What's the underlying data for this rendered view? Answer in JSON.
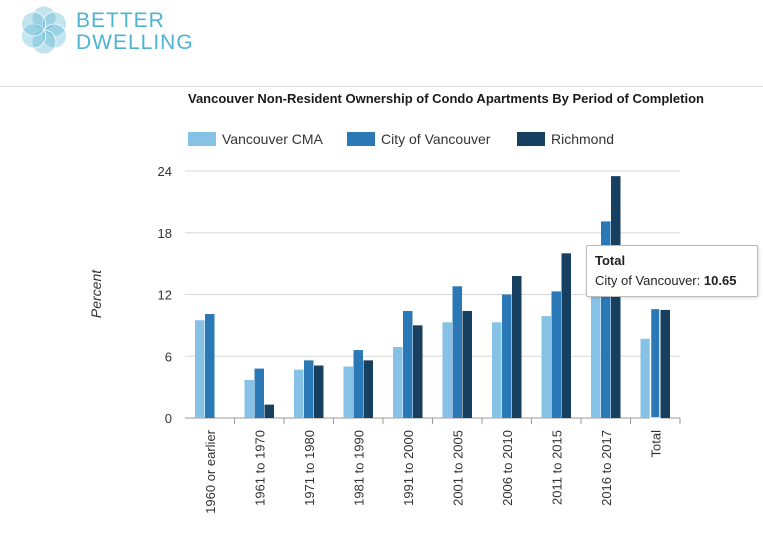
{
  "brand": {
    "line1": "BETTER",
    "line2": "DWELLING"
  },
  "colors": {
    "series1": "#86c2e6",
    "series2": "#2a78b5",
    "series3": "#173f5f",
    "brand": "#4fb3d2"
  },
  "tooltip": {
    "title": "Total",
    "series": "City of Vancouver:",
    "value": "10.65"
  },
  "chart_data": {
    "type": "bar",
    "title": "Vancouver Non-Resident Ownership of Condo Apartments By Period of Completion",
    "ylabel": "Percent",
    "xlabel": "",
    "ylim": [
      0,
      24
    ],
    "yticks": [
      0,
      6,
      12,
      18,
      24
    ],
    "grid": true,
    "legend": "top-left",
    "categories": [
      "1960 or earlier",
      "1961 to 1970",
      "1971 to 1980",
      "1981 to 1990",
      "1991 to 2000",
      "2001 to 2005",
      "2006 to 2010",
      "2011 to 2015",
      "2016 to 2017",
      "Total"
    ],
    "series": [
      {
        "name": "Vancouver CMA",
        "values": [
          9.5,
          3.7,
          4.7,
          5.0,
          6.9,
          9.3,
          9.3,
          9.9,
          12.2,
          7.7
        ]
      },
      {
        "name": "City of Vancouver",
        "values": [
          10.1,
          4.8,
          5.6,
          6.6,
          10.4,
          12.8,
          12.0,
          12.3,
          19.1,
          10.65
        ]
      },
      {
        "name": "Richmond",
        "values": [
          null,
          1.3,
          5.1,
          5.6,
          9.0,
          10.4,
          13.8,
          16.0,
          23.5,
          10.5
        ]
      }
    ]
  }
}
